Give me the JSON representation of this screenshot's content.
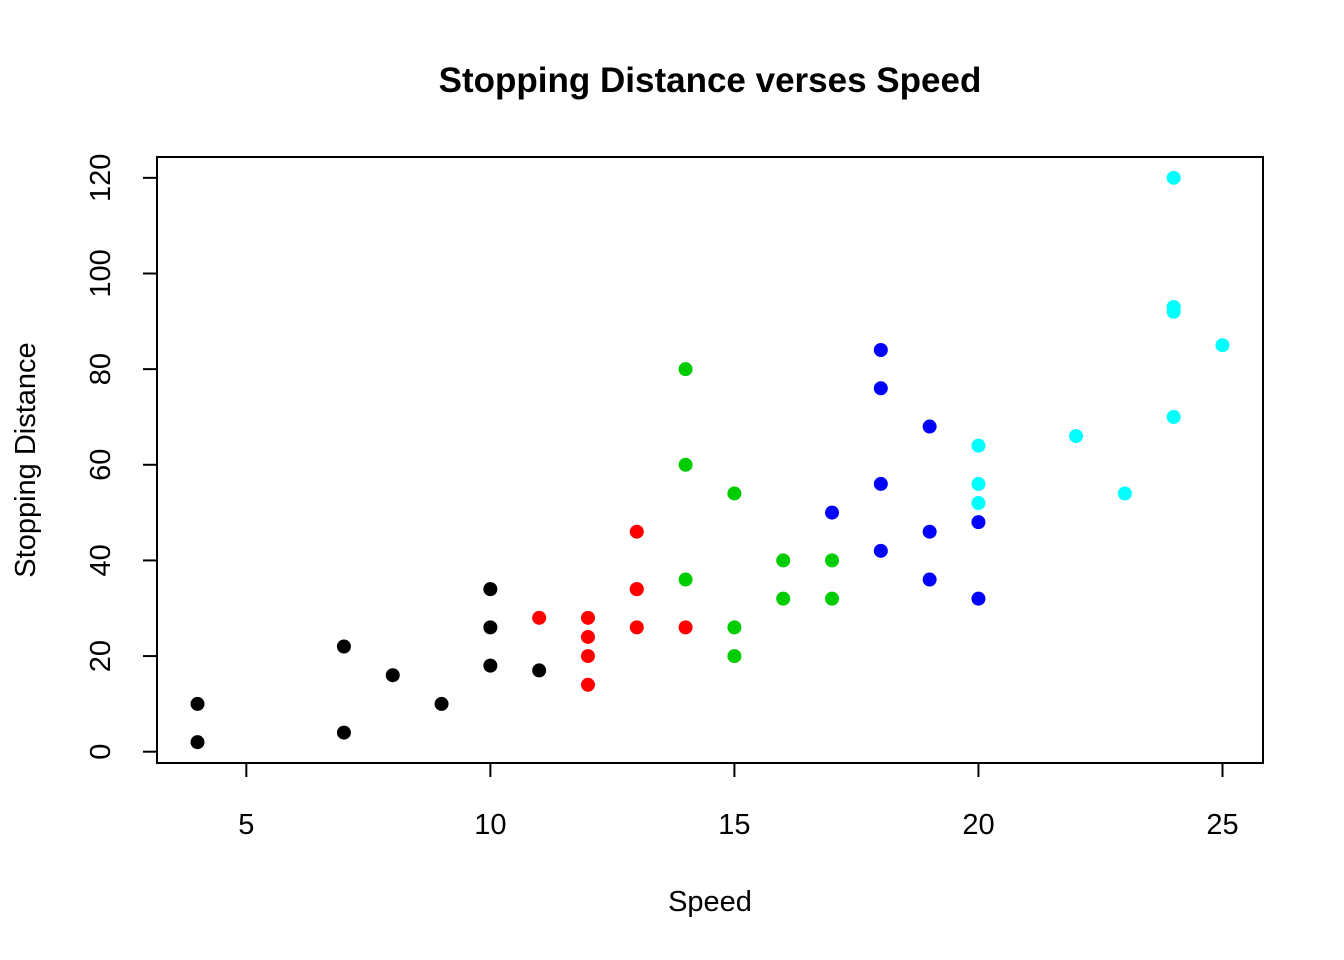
{
  "chart_data": {
    "type": "scatter",
    "title": "Stopping Distance verses Speed",
    "xlabel": "Speed",
    "ylabel": "Stopping Distance",
    "xlim": [
      3.17,
      25.83
    ],
    "ylim": [
      -2.36,
      124.36
    ],
    "x_ticks": [
      5,
      10,
      15,
      20,
      25
    ],
    "y_ticks": [
      0,
      20,
      40,
      60,
      80,
      100,
      120
    ],
    "grid": false,
    "legend": "none",
    "series": [
      {
        "color": "#000000",
        "points": [
          [
            4,
            2
          ],
          [
            4,
            10
          ],
          [
            7,
            4
          ],
          [
            7,
            22
          ],
          [
            8,
            16
          ],
          [
            9,
            10
          ],
          [
            10,
            18
          ],
          [
            10,
            26
          ],
          [
            10,
            34
          ],
          [
            11,
            17
          ]
        ]
      },
      {
        "color": "#FF0000",
        "points": [
          [
            11,
            28
          ],
          [
            12,
            14
          ],
          [
            12,
            20
          ],
          [
            12,
            24
          ],
          [
            12,
            28
          ],
          [
            13,
            26
          ],
          [
            13,
            34
          ],
          [
            13,
            34
          ],
          [
            13,
            46
          ],
          [
            14,
            26
          ]
        ]
      },
      {
        "color": "#00CD00",
        "points": [
          [
            14,
            36
          ],
          [
            14,
            60
          ],
          [
            14,
            80
          ],
          [
            15,
            20
          ],
          [
            15,
            26
          ],
          [
            15,
            54
          ],
          [
            16,
            32
          ],
          [
            16,
            40
          ],
          [
            17,
            32
          ],
          [
            17,
            40
          ]
        ]
      },
      {
        "color": "#0000FF",
        "points": [
          [
            17,
            50
          ],
          [
            18,
            42
          ],
          [
            18,
            56
          ],
          [
            18,
            76
          ],
          [
            18,
            84
          ],
          [
            19,
            36
          ],
          [
            19,
            46
          ],
          [
            19,
            68
          ],
          [
            20,
            32
          ],
          [
            20,
            48
          ]
        ]
      },
      {
        "color": "#00FFFF",
        "points": [
          [
            20,
            52
          ],
          [
            20,
            56
          ],
          [
            20,
            64
          ],
          [
            22,
            66
          ],
          [
            23,
            54
          ],
          [
            24,
            70
          ],
          [
            24,
            92
          ],
          [
            24,
            93
          ],
          [
            24,
            120
          ],
          [
            25,
            85
          ]
        ]
      }
    ]
  }
}
